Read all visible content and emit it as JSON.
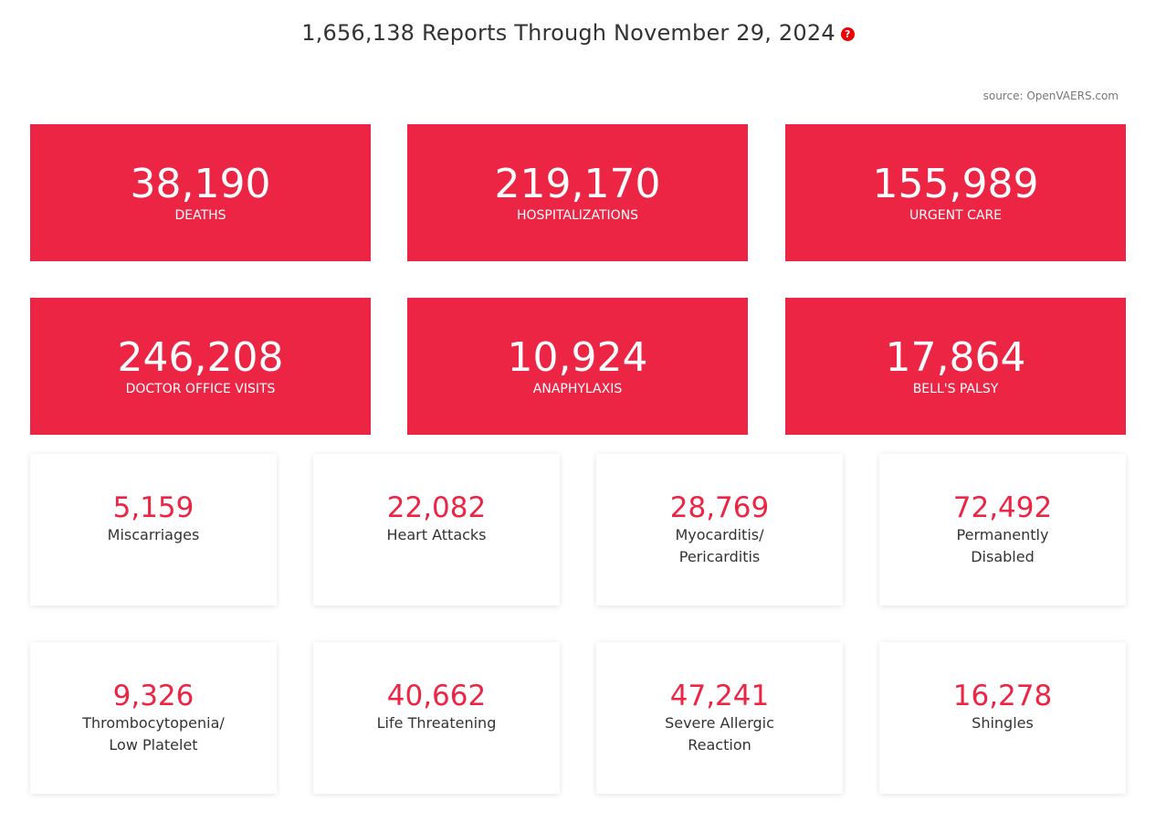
{
  "header": {
    "title": "1,656,138 Reports Through November 29, 2024",
    "help_icon": "?",
    "source": "source: OpenVAERS.com"
  },
  "primary_stats": [
    {
      "value": "38,190",
      "label": "DEATHS"
    },
    {
      "value": "219,170",
      "label": "HOSPITALIZATIONS"
    },
    {
      "value": "155,989",
      "label": "URGENT CARE"
    },
    {
      "value": "246,208",
      "label": "DOCTOR OFFICE VISITS"
    },
    {
      "value": "10,924",
      "label": "ANAPHYLAXIS"
    },
    {
      "value": "17,864",
      "label": "BELL'S PALSY"
    }
  ],
  "secondary_stats": [
    {
      "value": "5,159",
      "label": "Miscarriages"
    },
    {
      "value": "22,082",
      "label": "Heart Attacks"
    },
    {
      "value": "28,769",
      "label": "Myocarditis/\nPericarditis"
    },
    {
      "value": "72,492",
      "label": "Permanently\nDisabled"
    },
    {
      "value": "9,326",
      "label": "Thrombocytopenia/\nLow Platelet"
    },
    {
      "value": "40,662",
      "label": "Life Threatening"
    },
    {
      "value": "47,241",
      "label": "Severe Allergic\nReaction"
    },
    {
      "value": "16,278",
      "label": "Shingles"
    }
  ],
  "colors": {
    "accent": "#ec2544",
    "help": "#ee0000"
  }
}
